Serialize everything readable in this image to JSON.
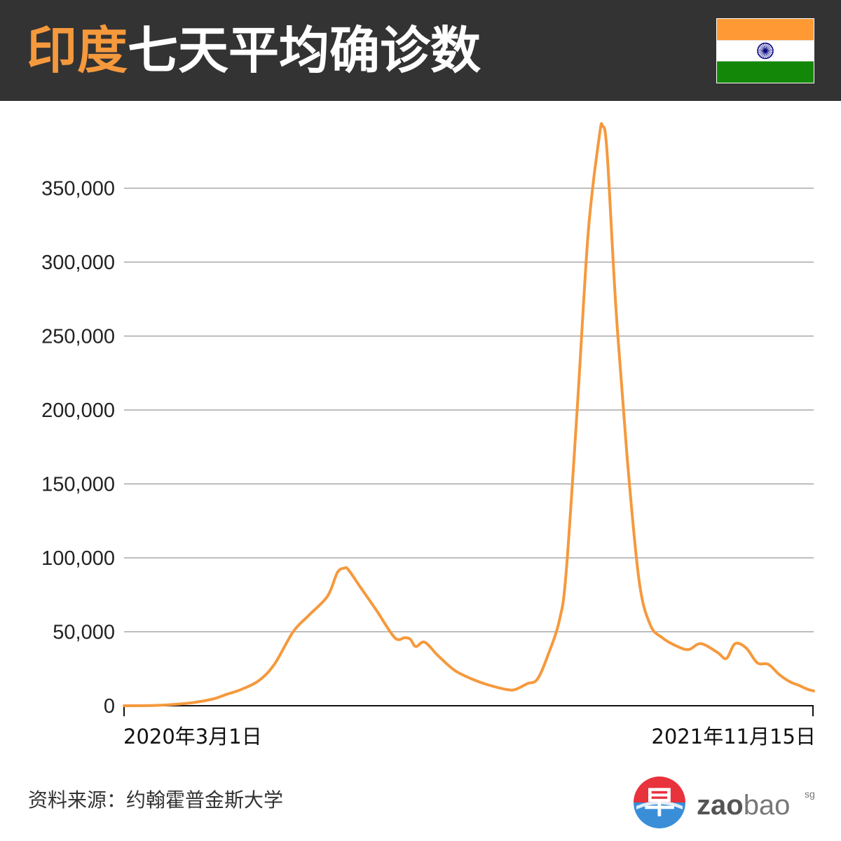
{
  "header": {
    "title_country": "印度",
    "title_rest": "七天平均确诊数",
    "flag_icon": "india-flag-icon",
    "flag_colors": {
      "saffron": "#ff9933",
      "white": "#ffffff",
      "green": "#138808",
      "chakra": "#000080"
    }
  },
  "colors": {
    "header_bg": "#333333",
    "accent": "#f5993d",
    "line": "#f5993d",
    "grid": "#999999"
  },
  "chart_data": {
    "type": "line",
    "title": "印度七天平均确诊数",
    "xlabel": "",
    "ylabel": "",
    "x_start_label": "2020年3月1日",
    "x_end_label": "2021年11月15日",
    "x_range": [
      "2020-03-01",
      "2021-11-15"
    ],
    "ylim": [
      0,
      370000
    ],
    "y_ticks": [
      0,
      50000,
      100000,
      150000,
      200000,
      250000,
      300000,
      350000
    ],
    "y_tick_labels": [
      "0",
      "50,000",
      "100,000",
      "150,000",
      "200,000",
      "250,000",
      "300,000",
      "350,000"
    ],
    "grid": true,
    "legend": "none",
    "series": [
      {
        "points": [
          [
            "2020-03-01",
            0
          ],
          [
            "2020-04-01",
            300
          ],
          [
            "2020-05-01",
            2000
          ],
          [
            "2020-05-20",
            4500
          ],
          [
            "2020-06-01",
            7500
          ],
          [
            "2020-06-15",
            11000
          ],
          [
            "2020-07-01",
            17000
          ],
          [
            "2020-07-15",
            28000
          ],
          [
            "2020-08-01",
            50000
          ],
          [
            "2020-08-15",
            61000
          ],
          [
            "2020-09-01",
            74000
          ],
          [
            "2020-09-10",
            90000
          ],
          [
            "2020-09-16",
            93000
          ],
          [
            "2020-09-20",
            92000
          ],
          [
            "2020-10-01",
            80000
          ],
          [
            "2020-10-15",
            65000
          ],
          [
            "2020-11-01",
            46000
          ],
          [
            "2020-11-10",
            46000
          ],
          [
            "2020-11-15",
            45000
          ],
          [
            "2020-11-20",
            40000
          ],
          [
            "2020-11-28",
            43000
          ],
          [
            "2020-12-10",
            34000
          ],
          [
            "2020-12-25",
            24000
          ],
          [
            "2021-01-10",
            18000
          ],
          [
            "2021-01-25",
            14000
          ],
          [
            "2021-02-10",
            11000
          ],
          [
            "2021-02-18",
            11000
          ],
          [
            "2021-03-01",
            15000
          ],
          [
            "2021-03-10",
            18000
          ],
          [
            "2021-03-20",
            35000
          ],
          [
            "2021-03-30",
            58000
          ],
          [
            "2021-04-05",
            90000
          ],
          [
            "2021-04-15",
            200000
          ],
          [
            "2021-04-25",
            320000
          ],
          [
            "2021-05-05",
            385000
          ],
          [
            "2021-05-08",
            392000
          ],
          [
            "2021-05-12",
            375000
          ],
          [
            "2021-05-20",
            270000
          ],
          [
            "2021-05-30",
            170000
          ],
          [
            "2021-06-10",
            85000
          ],
          [
            "2021-06-20",
            55000
          ],
          [
            "2021-07-01",
            46000
          ],
          [
            "2021-07-15",
            40000
          ],
          [
            "2021-07-25",
            38000
          ],
          [
            "2021-08-05",
            42000
          ],
          [
            "2021-08-20",
            36000
          ],
          [
            "2021-08-28",
            32000
          ],
          [
            "2021-09-05",
            42000
          ],
          [
            "2021-09-15",
            39000
          ],
          [
            "2021-09-25",
            29000
          ],
          [
            "2021-10-05",
            28000
          ],
          [
            "2021-10-15",
            21000
          ],
          [
            "2021-10-25",
            16000
          ],
          [
            "2021-11-01",
            14000
          ],
          [
            "2021-11-10",
            11000
          ],
          [
            "2021-11-15",
            10000
          ]
        ]
      }
    ]
  },
  "source": {
    "text": "资料来源：约翰霍普金斯大学"
  },
  "logo": {
    "glyph": "早",
    "text_zao": "zao",
    "text_bao": "bao",
    "text_sg": "sg",
    "colors": {
      "red": "#e8323c",
      "blue": "#3a8ed8",
      "gray": "#555555"
    }
  }
}
